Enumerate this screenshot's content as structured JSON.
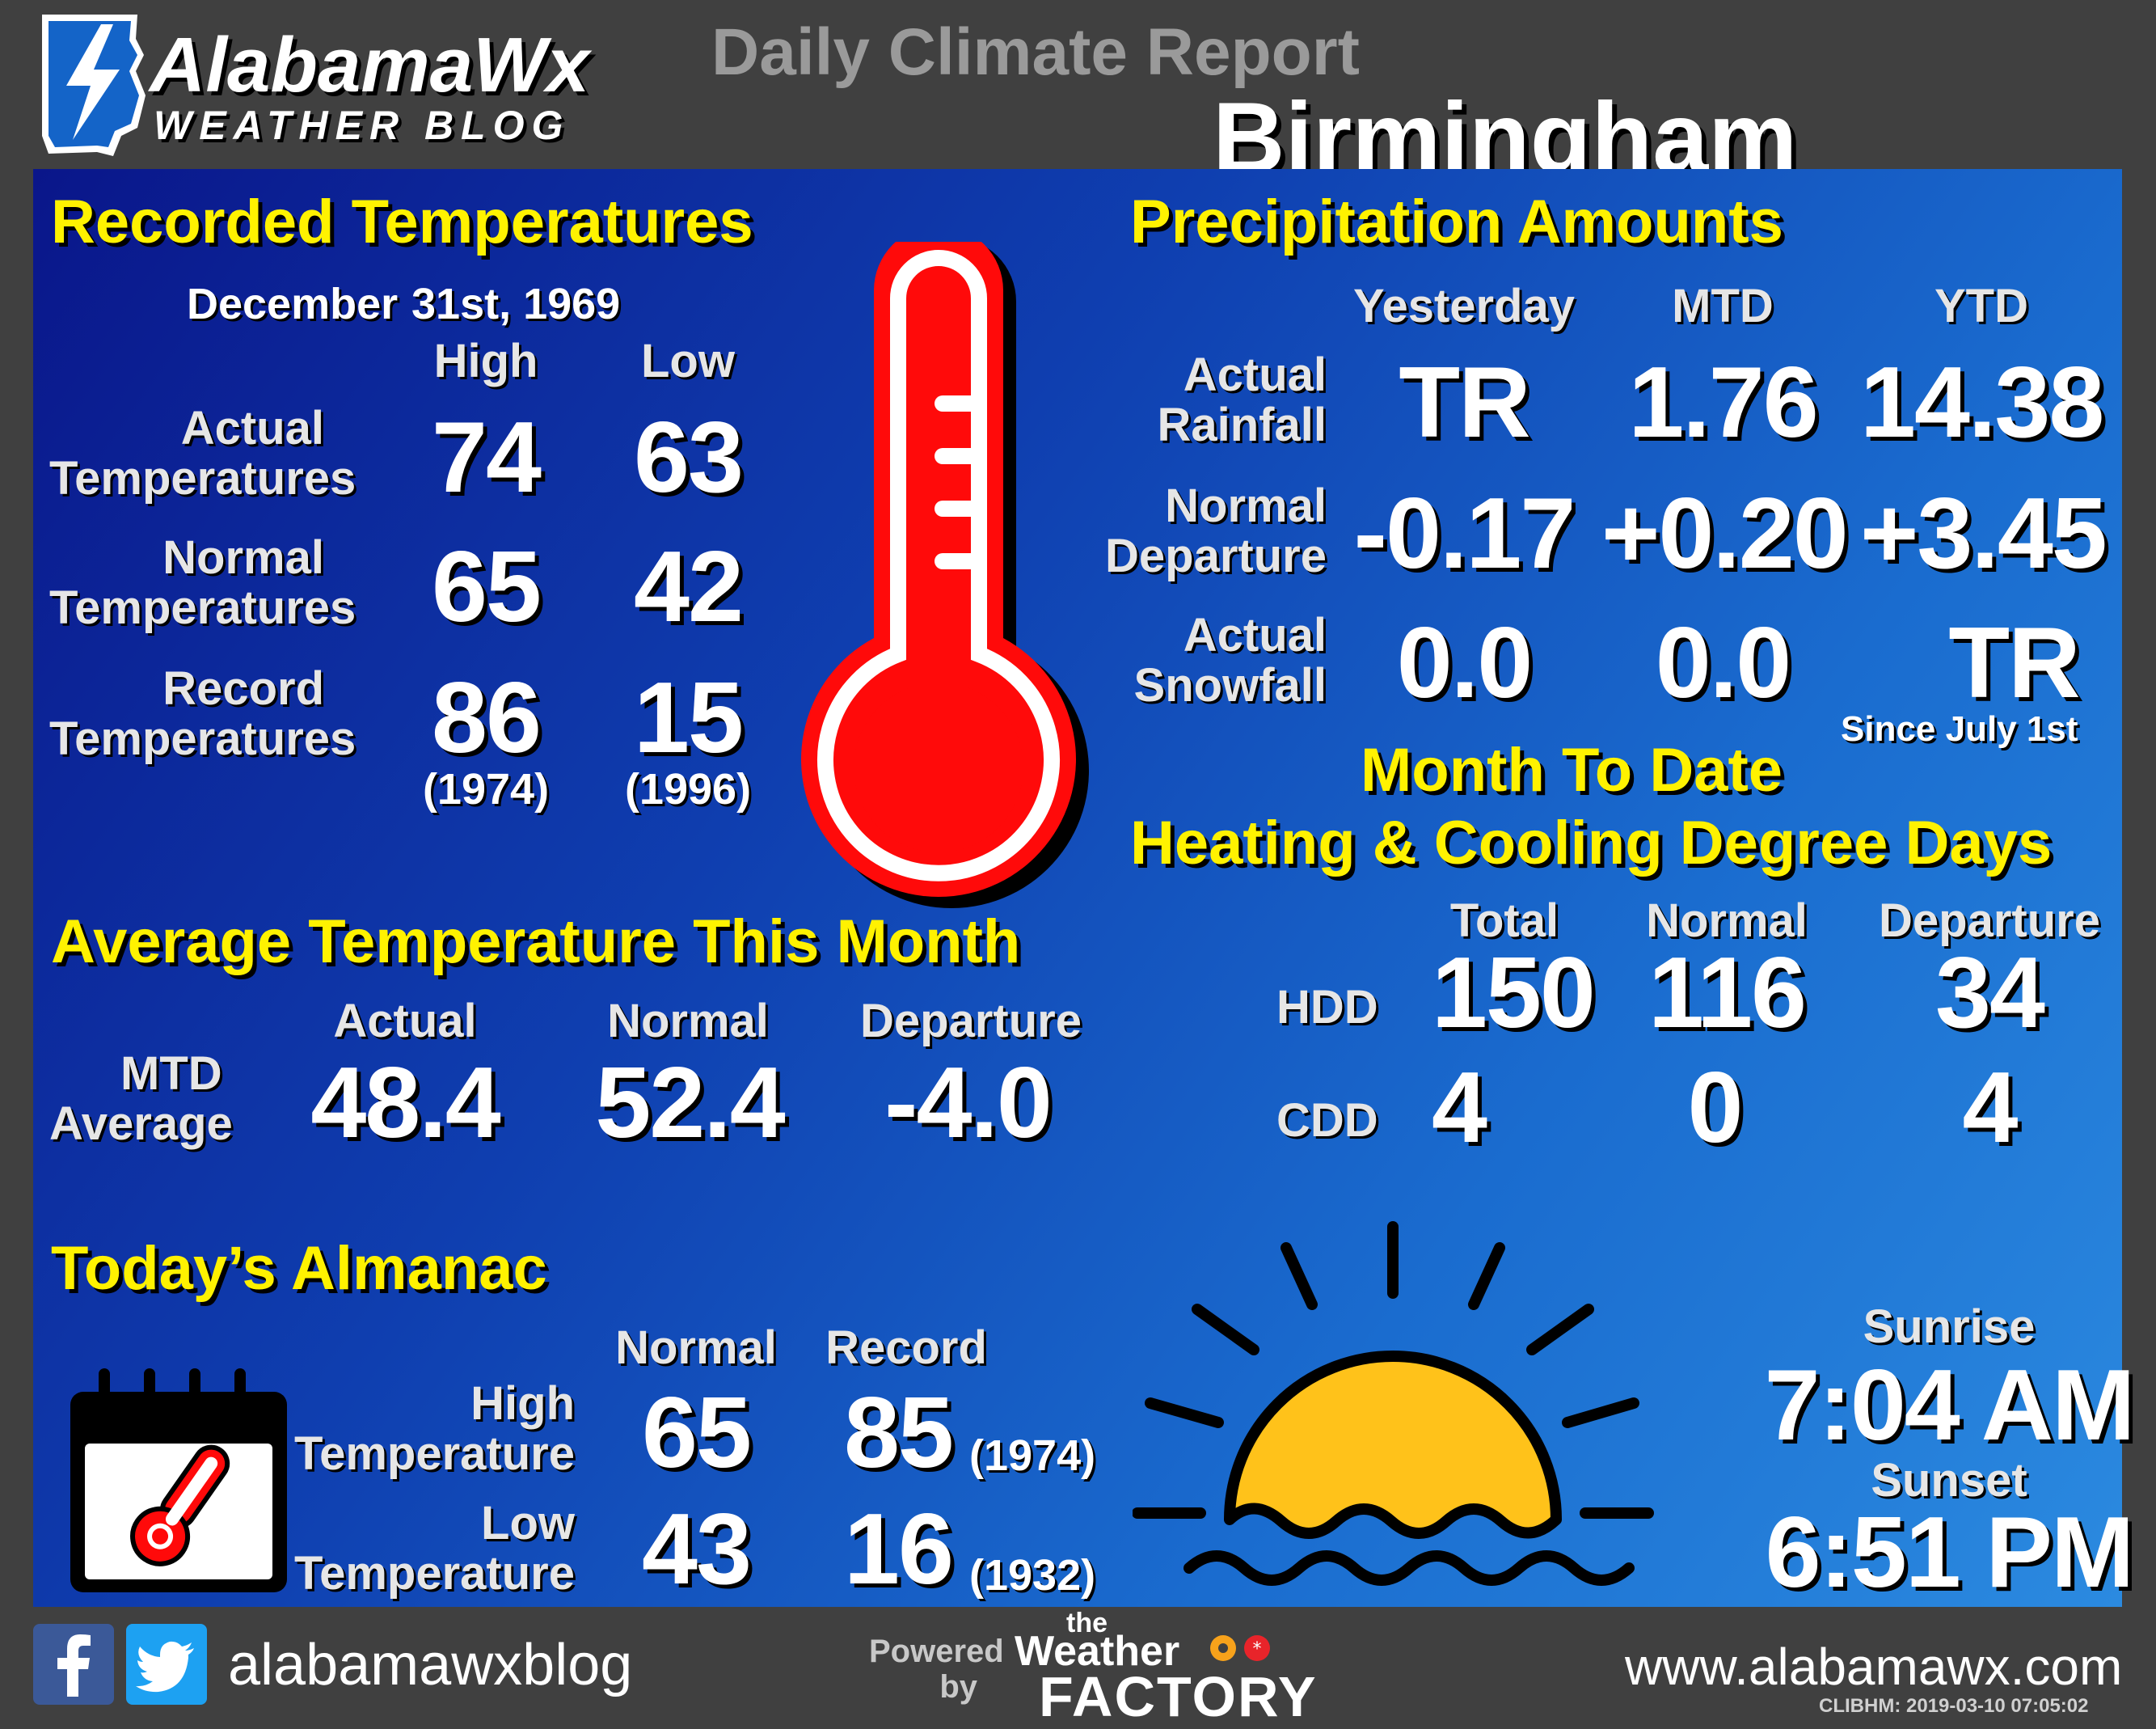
{
  "logo": {
    "name": "AlabamaWx",
    "tagline": "WEATHER BLOG"
  },
  "header": {
    "title": "Daily Climate Report",
    "city": "Birmingham"
  },
  "recorded_temps": {
    "title": "Recorded Temperatures",
    "date_month": "December",
    "date_day": "31st, 1969",
    "col_high": "High",
    "col_low": "Low",
    "rows": [
      {
        "label1": "Actual",
        "label2": "Temperatures",
        "high": "74",
        "low": "63"
      },
      {
        "label1": "Normal",
        "label2": "Temperatures",
        "high": "65",
        "low": "42"
      },
      {
        "label1": "Record",
        "label2": "Temperatures",
        "high": "86",
        "low": "15",
        "high_year": "(1974)",
        "low_year": "(1996)"
      }
    ]
  },
  "precip": {
    "title": "Precipitation Amounts",
    "cols": [
      "Yesterday",
      "MTD",
      "YTD"
    ],
    "rows": [
      {
        "label1": "Actual",
        "label2": "Rainfall",
        "values": [
          "TR",
          "1.76",
          "14.38"
        ]
      },
      {
        "label1": "Normal",
        "label2": "Departure",
        "values": [
          "-0.17",
          "+0.20",
          "+3.45"
        ]
      },
      {
        "label1": "Actual",
        "label2": "Snowfall",
        "values": [
          "0.0",
          "0.0",
          "TR"
        ]
      }
    ],
    "snow_note": "Since  July  1st"
  },
  "avg_temp": {
    "title": "Average Temperature This Month",
    "cols": [
      "Actual",
      "Normal",
      "Departure"
    ],
    "label1": "MTD",
    "label2": "Average",
    "values": [
      "48.4",
      "52.4",
      "-4.0"
    ]
  },
  "degree_days": {
    "title1": "Month To Date",
    "title2": "Heating & Cooling Degree Days",
    "cols": [
      "Total",
      "Normal",
      "Departure"
    ],
    "rows": [
      {
        "label": "HDD",
        "values": [
          "150",
          "116",
          "34"
        ]
      },
      {
        "label": "CDD",
        "values": [
          "4",
          "0",
          "4"
        ]
      }
    ]
  },
  "almanac": {
    "title": "Today’s Almanac",
    "cols": [
      "Normal",
      "Record"
    ],
    "rows": [
      {
        "label1": "High",
        "label2": "Temperature",
        "normal": "65",
        "record": "85",
        "year": "(1974)"
      },
      {
        "label1": "Low",
        "label2": "Temperature",
        "normal": "43",
        "record": "16",
        "year": "(1932)"
      }
    ]
  },
  "sun": {
    "sunrise_label": "Sunrise",
    "sunrise": "7:04 AM",
    "sunset_label": "Sunset",
    "sunset": "6:51 PM"
  },
  "footer": {
    "handle": "alabamawxblog",
    "powered": "Powered",
    "by": "by",
    "brand_the": "the",
    "brand_weather": "Weather",
    "brand_factory": "FACTORY",
    "website": "www.alabamawx.com",
    "stamp": "CLIBHM:  2019-03-10  07:05:02"
  },
  "colors": {
    "accent_yellow": "#fff200",
    "thermo_red": "#ff0a0a",
    "sun_yellow": "#ffc21a",
    "background": "#404040"
  },
  "icons": [
    "lightning-logo-icon",
    "thermometer-icon",
    "calendar-thermometer-icon",
    "sun-icon",
    "facebook-icon",
    "twitter-icon"
  ]
}
